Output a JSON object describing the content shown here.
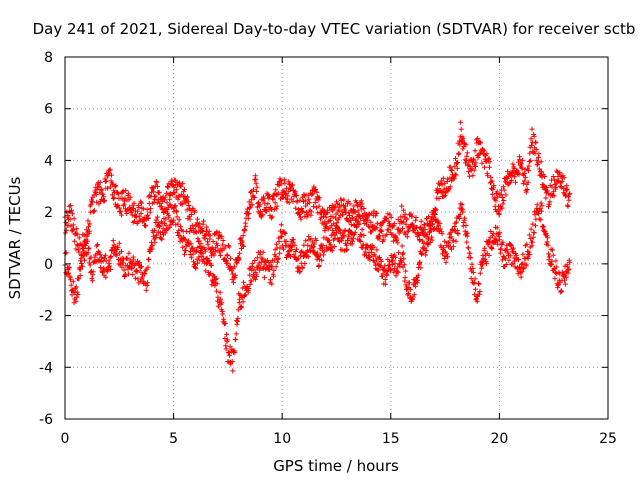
{
  "chart_data": {
    "type": "scatter",
    "title": "Day 241 of 2021, Sidereal Day-to-day VTEC variation (SDTVAR) for receiver sctb",
    "xlabel": "GPS time / hours",
    "ylabel": "SDTVAR / TECUs",
    "xlim": [
      0,
      25
    ],
    "ylim": [
      -6,
      8
    ],
    "xticks": [
      0,
      5,
      10,
      15,
      20,
      25
    ],
    "yticks": [
      -6,
      -4,
      -2,
      0,
      2,
      4,
      6,
      8
    ],
    "xtick_labels": [
      "0",
      "5",
      "10",
      "15",
      "20",
      "25"
    ],
    "ytick_labels": [
      "-6",
      "-4",
      "-2",
      "0",
      "2",
      "4",
      "6",
      "8"
    ],
    "grid": true,
    "marker": "+",
    "color": "#ff0000",
    "x_step_hours": 0.02,
    "series": [
      {
        "name": "upper trace",
        "x": [
          0.0,
          0.25,
          0.5,
          0.75,
          1.0,
          1.25,
          1.5,
          1.75,
          2.0,
          2.25,
          2.5,
          2.75,
          3.0,
          3.25,
          3.5,
          3.75,
          4.0,
          4.25,
          4.5,
          4.75,
          5.0,
          5.25,
          5.5,
          5.75,
          6.0,
          6.25,
          6.5,
          6.75,
          7.0,
          7.25,
          7.5,
          7.75,
          8.0,
          8.25,
          8.5,
          8.75,
          9.0,
          9.25,
          9.5,
          9.75,
          10.0,
          10.25,
          10.5,
          10.75,
          11.0,
          11.25,
          11.5,
          11.75,
          12.0,
          12.25,
          12.5,
          12.75,
          13.0,
          13.25,
          13.5,
          13.75,
          14.0,
          14.25,
          14.5,
          14.75,
          15.0,
          15.25,
          15.5,
          15.75,
          16.0,
          16.25,
          16.5,
          16.75,
          17.0,
          17.25,
          17.5,
          17.75,
          18.0,
          18.25,
          18.5,
          18.75,
          19.0,
          19.25,
          19.5,
          19.75,
          20.0,
          20.25,
          20.5,
          20.75,
          21.0,
          21.25,
          21.5,
          21.75,
          22.0,
          22.25,
          22.5,
          22.75,
          23.0,
          23.25
        ],
        "y": [
          1.5,
          2.0,
          1.0,
          0.5,
          1.2,
          2.2,
          2.8,
          2.6,
          3.5,
          2.8,
          2.2,
          2.5,
          2.2,
          1.8,
          2.0,
          1.8,
          2.6,
          2.8,
          2.3,
          2.6,
          3.2,
          2.8,
          2.6,
          1.8,
          1.6,
          1.2,
          1.4,
          0.6,
          0.9,
          0.6,
          0.4,
          -0.4,
          0.4,
          1.0,
          2.4,
          3.0,
          2.0,
          2.4,
          2.2,
          2.6,
          3.0,
          2.8,
          2.6,
          2.0,
          2.3,
          2.2,
          2.6,
          2.2,
          1.6,
          1.8,
          2.0,
          2.2,
          2.0,
          1.8,
          2.2,
          2.0,
          1.6,
          1.8,
          1.2,
          1.4,
          1.6,
          1.0,
          1.8,
          1.4,
          1.6,
          1.4,
          1.2,
          1.4,
          2.2,
          2.8,
          3.0,
          3.4,
          3.8,
          5.2,
          4.0,
          3.6,
          4.6,
          4.0,
          3.8,
          2.6,
          2.2,
          3.0,
          3.4,
          3.6,
          3.8,
          3.0,
          4.8,
          4.2,
          3.2,
          2.6,
          3.0,
          3.4,
          3.0,
          2.4
        ]
      },
      {
        "name": "lower trace",
        "x": [
          0.0,
          0.25,
          0.5,
          0.75,
          1.0,
          1.25,
          1.5,
          1.75,
          2.0,
          2.25,
          2.5,
          2.75,
          3.0,
          3.25,
          3.5,
          3.75,
          4.0,
          4.25,
          4.5,
          4.75,
          5.0,
          5.25,
          5.5,
          5.75,
          6.0,
          6.25,
          6.5,
          6.75,
          7.0,
          7.25,
          7.5,
          7.75,
          8.0,
          8.25,
          8.5,
          8.75,
          9.0,
          9.25,
          9.5,
          9.75,
          10.0,
          10.25,
          10.5,
          10.75,
          11.0,
          11.25,
          11.5,
          11.75,
          12.0,
          12.25,
          12.5,
          12.75,
          13.0,
          13.25,
          13.5,
          13.75,
          14.0,
          14.25,
          14.5,
          14.75,
          15.0,
          15.25,
          15.5,
          15.75,
          16.0,
          16.25,
          16.5,
          16.75,
          17.0,
          17.25,
          17.5,
          17.75,
          18.0,
          18.25,
          18.5,
          18.75,
          19.0,
          19.25,
          19.5,
          19.75,
          20.0,
          20.25,
          20.5,
          20.75,
          21.0,
          21.25,
          21.5,
          21.75,
          22.0,
          22.25,
          22.5,
          22.75,
          23.0,
          23.25
        ],
        "y": [
          0.2,
          -0.6,
          -1.4,
          0.0,
          0.8,
          -0.4,
          0.6,
          0.0,
          -0.2,
          0.8,
          0.4,
          -0.4,
          0.2,
          -0.2,
          -0.4,
          -0.6,
          0.8,
          1.4,
          1.2,
          1.8,
          2.0,
          1.4,
          0.8,
          0.8,
          0.2,
          0.6,
          0.0,
          -0.4,
          -1.0,
          -2.0,
          -3.4,
          -3.8,
          -1.6,
          -1.0,
          -0.6,
          -0.2,
          0.2,
          -0.2,
          -0.4,
          0.4,
          1.2,
          0.4,
          0.8,
          0.0,
          0.4,
          0.8,
          0.6,
          0.2,
          1.0,
          0.8,
          1.2,
          0.8,
          1.0,
          1.2,
          1.4,
          0.8,
          0.4,
          0.2,
          0.0,
          -0.6,
          0.2,
          -0.2,
          0.4,
          -0.8,
          -1.2,
          -0.2,
          0.6,
          1.0,
          1.6,
          1.2,
          0.4,
          0.8,
          1.2,
          2.2,
          1.0,
          -0.4,
          -1.2,
          0.2,
          0.6,
          1.2,
          0.8,
          0.2,
          0.4,
          0.0,
          -0.2,
          0.4,
          1.0,
          2.4,
          1.8,
          0.4,
          0.0,
          -0.8,
          -0.6,
          0.2
        ]
      }
    ]
  }
}
